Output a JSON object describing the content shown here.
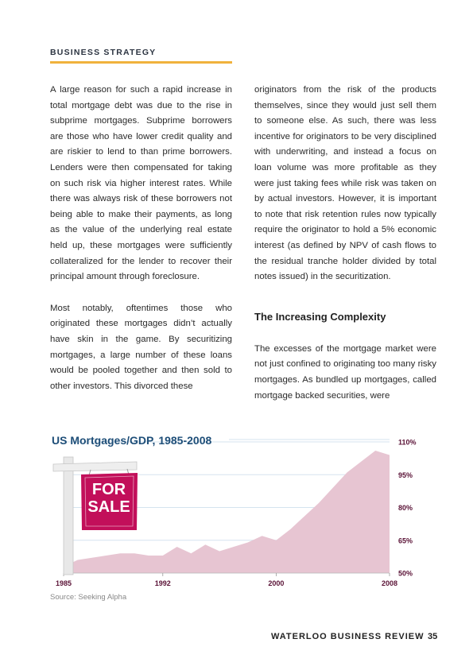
{
  "section": "BUSINESS STRATEGY",
  "col_left": {
    "p1": "A large reason for such a rapid increase in total mortgage debt was due to the rise in subprime mortgages. Subprime borrowers are those who have lower credit quality and are riskier to lend to than prime borrowers. Lenders were then compensated for taking on such risk via higher interest rates. While there was always risk of these borrowers not being able to make their payments, as long as the value of the underlying real estate held up, these mortgages were sufficiently collateralized for the lender to recover their principal amount through foreclosure.",
    "p2": "Most notably, oftentimes those who originated these mortgages didn’t actually have skin in the game. By securitizing mortgages, a large number of these loans would be pooled together and then sold to other investors. This divorced these"
  },
  "col_right": {
    "p1": "originators from the risk of the products themselves, since they would just sell them to someone else. As such, there was less incentive for originators to be very disciplined with underwriting, and instead a focus on loan volume was more profitable as they were just taking fees while risk was taken on by actual investors. However, it is important to note that risk retention rules now typically require the originator to hold a 5% economic interest (as defined by NPV of cash flows to the residual tranche holder divided by total notes issued) in the securitization.",
    "heading": "The Increasing Complexity",
    "p2": "The excesses of the mortgage market were not just confined to originating too many risky mortgages. As bundled up mortgages, called mortgage backed securities, were"
  },
  "sign": {
    "line1": "FOR",
    "line2": "SALE"
  },
  "chart_data": {
    "type": "area",
    "title": "US Mortgages/GDP, 1985-2008",
    "x": [
      1985,
      1986,
      1987,
      1988,
      1989,
      1990,
      1991,
      1992,
      1993,
      1994,
      1995,
      1996,
      1997,
      1998,
      1999,
      2000,
      2001,
      2002,
      2003,
      2004,
      2005,
      2006,
      2007,
      2008
    ],
    "values": [
      53,
      56,
      57,
      58,
      59,
      59,
      58,
      58,
      62,
      59,
      63,
      60,
      62,
      64,
      67,
      65,
      70,
      76,
      82,
      89,
      96,
      101,
      106,
      104
    ],
    "x_tick_labels": [
      "1985",
      "1992",
      "2000",
      "2008"
    ],
    "y_tick_labels": [
      "110%",
      "95%",
      "80%",
      "65%",
      "50%"
    ],
    "ylim": [
      50,
      110
    ],
    "grid": true,
    "area_color": "#e7c5d2",
    "grid_color": "#d5e3ef",
    "source": "Source: Seeking Alpha"
  },
  "footer": {
    "publication": "WATERLOO BUSINESS REVIEW",
    "page": "35"
  }
}
